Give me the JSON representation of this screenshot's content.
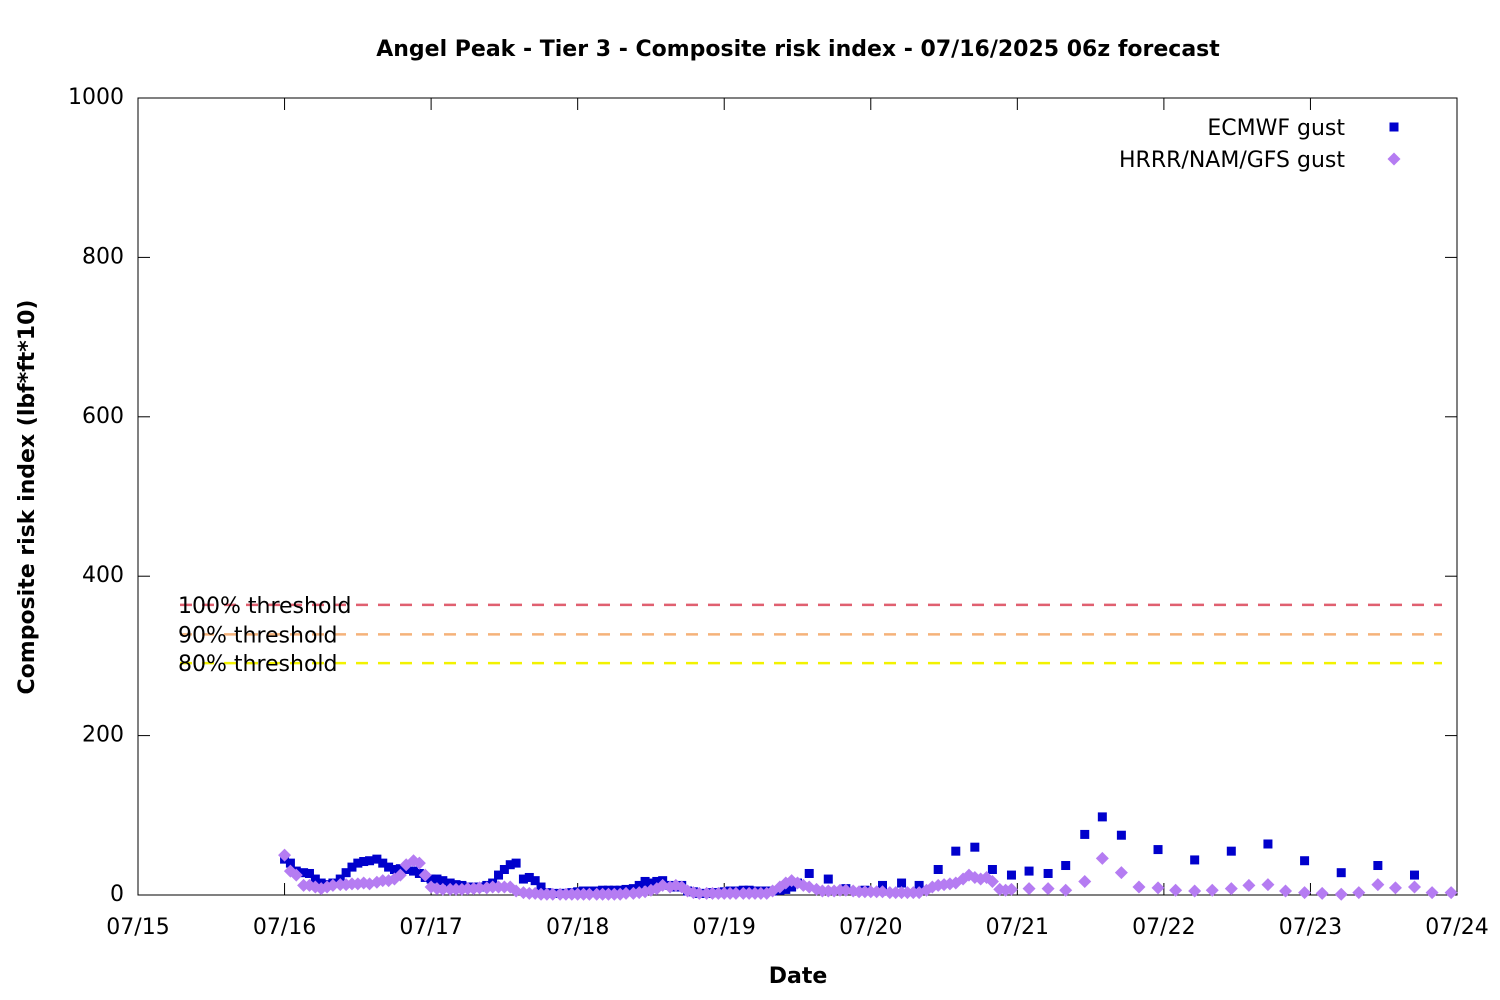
{
  "chart_data": {
    "type": "scatter",
    "title": "Angel Peak - Tier 3 - Composite risk index - 07/16/2025 06z forecast",
    "xlabel": "Date",
    "ylabel": "Composite risk index (lbf*ft*10)",
    "xlim": [
      0,
      9
    ],
    "xticks": [
      {
        "value": 0,
        "label": "07/15"
      },
      {
        "value": 1,
        "label": "07/16"
      },
      {
        "value": 2,
        "label": "07/17"
      },
      {
        "value": 3,
        "label": "07/18"
      },
      {
        "value": 4,
        "label": "07/19"
      },
      {
        "value": 5,
        "label": "07/20"
      },
      {
        "value": 6,
        "label": "07/21"
      },
      {
        "value": 7,
        "label": "07/22"
      },
      {
        "value": 8,
        "label": "07/23"
      },
      {
        "value": 9,
        "label": "07/24"
      }
    ],
    "ylim": [
      0,
      1000
    ],
    "yticks": [
      0,
      200,
      400,
      600,
      800,
      1000
    ],
    "legend": "top-right",
    "thresholds": [
      {
        "name": "100% threshold",
        "value": 364,
        "color": "#e06070"
      },
      {
        "name": "90% threshold",
        "value": 327,
        "color": "#f5b27a"
      },
      {
        "name": "80% threshold",
        "value": 291,
        "color": "#f2f200"
      }
    ],
    "series": [
      {
        "name": "ECMWF gust",
        "color": "#0000cc",
        "marker": "square",
        "x": [
          1.0,
          1.04,
          1.08,
          1.13,
          1.17,
          1.21,
          1.25,
          1.29,
          1.33,
          1.38,
          1.42,
          1.46,
          1.5,
          1.54,
          1.58,
          1.63,
          1.67,
          1.71,
          1.75,
          1.79,
          1.83,
          1.88,
          1.92,
          1.96,
          2.0,
          2.04,
          2.08,
          2.13,
          2.17,
          2.21,
          2.25,
          2.29,
          2.33,
          2.38,
          2.42,
          2.46,
          2.5,
          2.54,
          2.58,
          2.63,
          2.67,
          2.71,
          2.75,
          2.79,
          2.83,
          2.88,
          2.92,
          2.96,
          3.0,
          3.04,
          3.08,
          3.13,
          3.17,
          3.21,
          3.25,
          3.29,
          3.33,
          3.38,
          3.42,
          3.46,
          3.5,
          3.54,
          3.58,
          3.63,
          3.67,
          3.71,
          3.75,
          3.79,
          3.83,
          3.88,
          3.92,
          3.96,
          4.0,
          4.04,
          4.08,
          4.13,
          4.17,
          4.21,
          4.25,
          4.29,
          4.33,
          4.38,
          4.42,
          4.46,
          4.5,
          4.58,
          4.71,
          4.83,
          4.96,
          5.08,
          5.21,
          5.33,
          5.46,
          5.58,
          5.71,
          5.83,
          5.96,
          6.08,
          6.21,
          6.33,
          6.46,
          6.58,
          6.71,
          6.96,
          7.21,
          7.46,
          7.71,
          7.96,
          8.21,
          8.46,
          8.71
        ],
        "values": [
          45,
          40,
          30,
          28,
          27,
          20,
          15,
          13,
          15,
          20,
          28,
          35,
          40,
          42,
          43,
          45,
          40,
          35,
          32,
          33,
          32,
          30,
          27,
          22,
          20,
          20,
          18,
          15,
          13,
          12,
          10,
          10,
          10,
          12,
          15,
          25,
          32,
          38,
          40,
          20,
          22,
          18,
          10,
          3,
          2,
          2,
          2,
          3,
          4,
          5,
          5,
          5,
          6,
          6,
          6,
          6,
          7,
          8,
          12,
          17,
          15,
          17,
          18,
          12,
          10,
          12,
          5,
          4,
          2,
          2,
          3,
          3,
          4,
          5,
          5,
          6,
          6,
          5,
          5,
          5,
          5,
          6,
          7,
          10,
          15,
          27,
          20,
          8,
          6,
          12,
          15,
          12,
          32,
          55,
          60,
          32,
          25,
          30,
          27,
          37,
          76,
          98,
          75,
          57,
          44,
          55,
          64,
          43,
          28,
          37,
          25
        ]
      },
      {
        "name": "HRRR/NAM/GFS gust",
        "color": "#b57cf2",
        "marker": "diamond",
        "x": [
          1.0,
          1.04,
          1.08,
          1.13,
          1.17,
          1.21,
          1.25,
          1.29,
          1.33,
          1.38,
          1.42,
          1.46,
          1.5,
          1.54,
          1.58,
          1.63,
          1.67,
          1.71,
          1.75,
          1.79,
          1.83,
          1.88,
          1.92,
          1.96,
          2.0,
          2.04,
          2.08,
          2.13,
          2.17,
          2.21,
          2.25,
          2.29,
          2.33,
          2.38,
          2.42,
          2.46,
          2.5,
          2.54,
          2.58,
          2.63,
          2.67,
          2.71,
          2.75,
          2.79,
          2.83,
          2.88,
          2.92,
          2.96,
          3.0,
          3.04,
          3.08,
          3.13,
          3.17,
          3.21,
          3.25,
          3.29,
          3.33,
          3.38,
          3.42,
          3.46,
          3.5,
          3.54,
          3.58,
          3.63,
          3.67,
          3.71,
          3.75,
          3.79,
          3.83,
          3.88,
          3.92,
          3.96,
          4.0,
          4.04,
          4.08,
          4.13,
          4.17,
          4.21,
          4.25,
          4.29,
          4.33,
          4.38,
          4.42,
          4.46,
          4.5,
          4.54,
          4.58,
          4.63,
          4.67,
          4.71,
          4.75,
          4.79,
          4.83,
          4.88,
          4.92,
          4.96,
          5.0,
          5.04,
          5.08,
          5.13,
          5.17,
          5.21,
          5.25,
          5.29,
          5.33,
          5.38,
          5.42,
          5.46,
          5.5,
          5.54,
          5.58,
          5.63,
          5.67,
          5.71,
          5.75,
          5.79,
          5.83,
          5.88,
          5.92,
          5.96,
          6.08,
          6.21,
          6.33,
          6.46,
          6.58,
          6.71,
          6.83,
          6.96,
          7.08,
          7.21,
          7.33,
          7.46,
          7.58,
          7.71,
          7.83,
          7.96,
          8.08,
          8.21,
          8.33,
          8.46,
          8.58,
          8.71,
          8.83,
          8.96
        ],
        "values": [
          50,
          30,
          25,
          12,
          12,
          10,
          8,
          10,
          12,
          13,
          13,
          14,
          14,
          15,
          14,
          16,
          18,
          18,
          20,
          25,
          38,
          43,
          40,
          25,
          10,
          8,
          7,
          7,
          7,
          7,
          8,
          8,
          9,
          9,
          10,
          10,
          10,
          10,
          5,
          3,
          2,
          2,
          1,
          1,
          1,
          1,
          1,
          1,
          1,
          1,
          1,
          1,
          1,
          1,
          1,
          1,
          2,
          2,
          3,
          4,
          6,
          8,
          12,
          10,
          12,
          10,
          5,
          3,
          2,
          2,
          2,
          2,
          2,
          2,
          2,
          2,
          2,
          2,
          2,
          2,
          5,
          10,
          15,
          18,
          15,
          12,
          10,
          7,
          5,
          5,
          5,
          6,
          6,
          5,
          4,
          4,
          4,
          4,
          4,
          3,
          3,
          3,
          3,
          3,
          3,
          6,
          10,
          12,
          13,
          14,
          15,
          20,
          25,
          22,
          20,
          22,
          17,
          7,
          6,
          7,
          8,
          8,
          6,
          17,
          46,
          28,
          10,
          9,
          6,
          5,
          6,
          8,
          12,
          13,
          5,
          3,
          2,
          1,
          3,
          13,
          9,
          10,
          3,
          3
        ]
      }
    ]
  }
}
